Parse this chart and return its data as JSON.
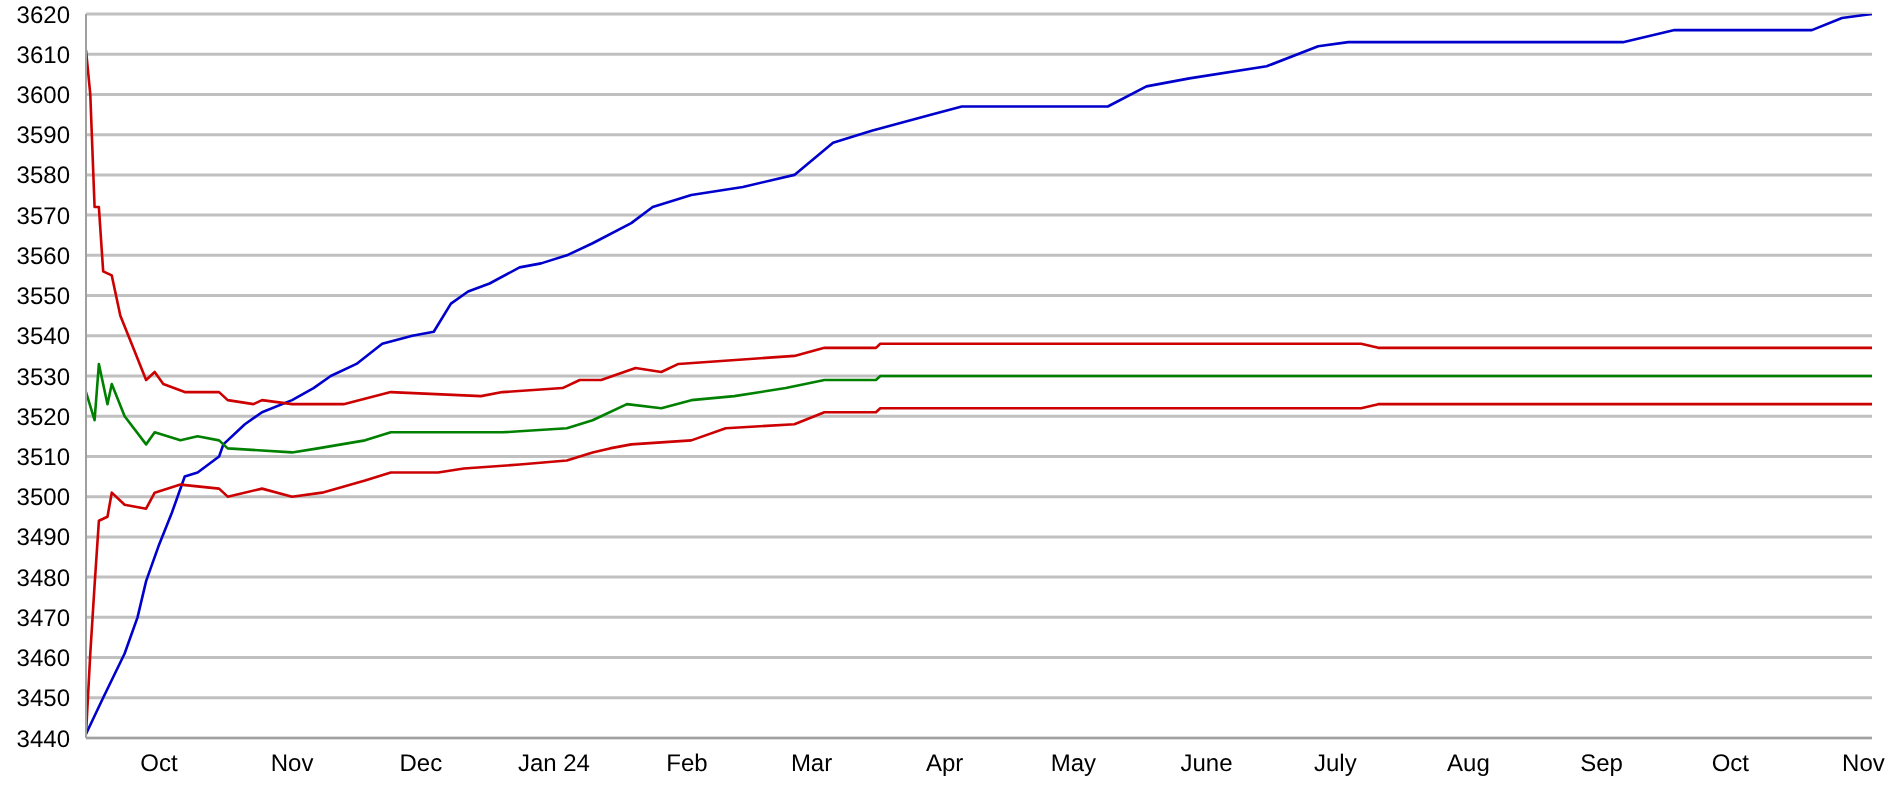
{
  "chart_data": {
    "type": "line",
    "xlim": [
      "2023-09-14",
      "2024-11-03"
    ],
    "ylim": [
      3440,
      3620
    ],
    "yticks": [
      3440,
      3450,
      3460,
      3470,
      3480,
      3490,
      3500,
      3510,
      3520,
      3530,
      3540,
      3550,
      3560,
      3570,
      3580,
      3590,
      3600,
      3610,
      3620
    ],
    "xticks": [
      {
        "value": "2023-10-01",
        "label": "Oct"
      },
      {
        "value": "2023-11-01",
        "label": "Nov"
      },
      {
        "value": "2023-12-01",
        "label": "Dec"
      },
      {
        "value": "2024-01-01",
        "label": "Jan 24"
      },
      {
        "value": "2024-02-01",
        "label": "Feb"
      },
      {
        "value": "2024-03-01",
        "label": "Mar"
      },
      {
        "value": "2024-04-01",
        "label": "Apr"
      },
      {
        "value": "2024-05-01",
        "label": "May"
      },
      {
        "value": "2024-06-01",
        "label": "June"
      },
      {
        "value": "2024-07-01",
        "label": "July"
      },
      {
        "value": "2024-08-01",
        "label": "Aug"
      },
      {
        "value": "2024-09-01",
        "label": "Sep"
      },
      {
        "value": "2024-10-01",
        "label": "Oct"
      },
      {
        "value": "2024-11-01",
        "label": "Nov"
      }
    ],
    "grid": "y",
    "marker": "none",
    "line_style": "solid",
    "series": [
      {
        "color": "#0000cc",
        "x": [
          "2023-09-14",
          "2023-09-18",
          "2023-09-23",
          "2023-09-26",
          "2023-09-28",
          "2023-10-01",
          "2023-10-04",
          "2023-10-07",
          "2023-10-10",
          "2023-10-15",
          "2023-10-16",
          "2023-10-21",
          "2023-10-25",
          "2023-11-01",
          "2023-11-06",
          "2023-11-10",
          "2023-11-16",
          "2023-11-22",
          "2023-11-29",
          "2023-12-04",
          "2023-12-08",
          "2023-12-12",
          "2023-12-17",
          "2023-12-24",
          "2023-12-29",
          "2024-01-04",
          "2024-01-10",
          "2024-01-19",
          "2024-01-24",
          "2024-02-02",
          "2024-02-14",
          "2024-02-26",
          "2024-03-06",
          "2024-03-15",
          "2024-03-29",
          "2024-04-05",
          "2024-05-09",
          "2024-05-18",
          "2024-05-28",
          "2024-06-15",
          "2024-06-27",
          "2024-07-04",
          "2024-09-06",
          "2024-09-18",
          "2024-10-20",
          "2024-10-27",
          "2024-11-03"
        ],
        "values": [
          3441,
          3450,
          3461,
          3470,
          3479,
          3488,
          3496,
          3505,
          3506,
          3510,
          3513,
          3518,
          3521,
          3524,
          3527,
          3530,
          3533,
          3538,
          3540,
          3541,
          3548,
          3551,
          3553,
          3557,
          3558,
          3560,
          3563,
          3568,
          3572,
          3575,
          3577,
          3580,
          3588,
          3591,
          3595,
          3597,
          3597,
          3602,
          3604,
          3607,
          3612,
          3613,
          3613,
          3616,
          3616,
          3619,
          3620
        ]
      },
      {
        "color": "#cc0000",
        "x": [
          "2023-09-14",
          "2023-09-15",
          "2023-09-16",
          "2023-09-17",
          "2023-09-18",
          "2023-09-20",
          "2023-09-22",
          "2023-09-25",
          "2023-09-28",
          "2023-09-30",
          "2023-10-02",
          "2023-10-07",
          "2023-10-15",
          "2023-10-17",
          "2023-10-23",
          "2023-10-25",
          "2023-11-01",
          "2023-11-13",
          "2023-11-24",
          "2023-12-15",
          "2023-12-20",
          "2024-01-03",
          "2024-01-07",
          "2024-01-12",
          "2024-01-20",
          "2024-01-26",
          "2024-01-30",
          "2024-02-26",
          "2024-03-04",
          "2024-03-16",
          "2024-03-17",
          "2024-07-07",
          "2024-07-11",
          "2024-11-03"
        ],
        "values": [
          3611,
          3600,
          3572,
          3572,
          3556,
          3555,
          3545,
          3537,
          3529,
          3531,
          3528,
          3526,
          3526,
          3524,
          3523,
          3524,
          3523,
          3523,
          3526,
          3525,
          3526,
          3527,
          3529,
          3529,
          3532,
          3531,
          3533,
          3535,
          3537,
          3537,
          3538,
          3538,
          3537,
          3537
        ]
      },
      {
        "color": "#008000",
        "x": [
          "2023-09-14",
          "2023-09-16",
          "2023-09-17",
          "2023-09-19",
          "2023-09-20",
          "2023-09-23",
          "2023-09-28",
          "2023-09-30",
          "2023-10-06",
          "2023-10-10",
          "2023-10-15",
          "2023-10-17",
          "2023-11-01",
          "2023-11-07",
          "2023-11-18",
          "2023-11-24",
          "2023-12-20",
          "2024-01-04",
          "2024-01-10",
          "2024-01-18",
          "2024-01-26",
          "2024-02-02",
          "2024-02-12",
          "2024-02-24",
          "2024-03-04",
          "2024-03-16",
          "2024-03-17",
          "2024-11-03"
        ],
        "values": [
          3526,
          3519,
          3533,
          3523,
          3528,
          3520,
          3513,
          3516,
          3514,
          3515,
          3514,
          3512,
          3511,
          3512,
          3514,
          3516,
          3516,
          3517,
          3519,
          3523,
          3522,
          3524,
          3525,
          3527,
          3529,
          3529,
          3530,
          3530
        ]
      },
      {
        "color": "#cc0000",
        "x": [
          "2023-09-14",
          "2023-09-15",
          "2023-09-16",
          "2023-09-17",
          "2023-09-19",
          "2023-09-20",
          "2023-09-23",
          "2023-09-28",
          "2023-09-30",
          "2023-10-06",
          "2023-10-15",
          "2023-10-17",
          "2023-10-25",
          "2023-11-01",
          "2023-11-08",
          "2023-11-18",
          "2023-11-24",
          "2023-12-05",
          "2023-12-11",
          "2023-12-24",
          "2024-01-04",
          "2024-01-10",
          "2024-01-14",
          "2024-01-19",
          "2024-02-02",
          "2024-02-10",
          "2024-02-26",
          "2024-03-04",
          "2024-03-16",
          "2024-03-17",
          "2024-07-07",
          "2024-07-11",
          "2024-11-03"
        ],
        "values": [
          3441,
          3461,
          3478,
          3494,
          3495,
          3501,
          3498,
          3497,
          3501,
          3503,
          3502,
          3500,
          3502,
          3500,
          3501,
          3504,
          3506,
          3506,
          3507,
          3508,
          3509,
          3511,
          3512,
          3513,
          3514,
          3517,
          3518,
          3521,
          3521,
          3522,
          3522,
          3523,
          3523
        ]
      }
    ]
  }
}
